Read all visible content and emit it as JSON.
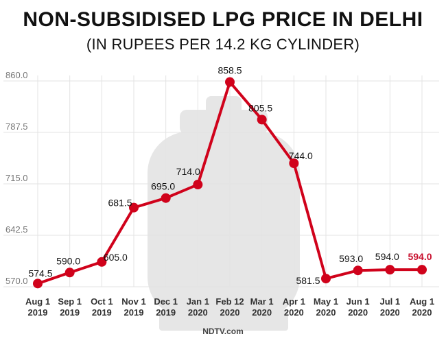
{
  "chart_data": {
    "type": "line",
    "title": "NON-SUBSIDISED LPG PRICE IN DELHI",
    "subtitle": "(IN RUPEES PER 14.2 KG CYLINDER)",
    "categories": [
      [
        "Aug 1",
        "2019"
      ],
      [
        "Sep 1",
        "2019"
      ],
      [
        "Oct 1",
        "2019"
      ],
      [
        "Nov 1",
        "2019"
      ],
      [
        "Dec 1",
        "2019"
      ],
      [
        "Jan 1",
        "2020"
      ],
      [
        "Feb 12",
        "2020"
      ],
      [
        "Mar 1",
        "2020"
      ],
      [
        "Apr 1",
        "2020"
      ],
      [
        "May 1",
        "2020"
      ],
      [
        "Jun 1",
        "2020"
      ],
      [
        "Jul 1",
        "2020"
      ],
      [
        "Aug 1",
        "2020"
      ]
    ],
    "values": [
      574.5,
      590.0,
      605.0,
      681.5,
      695.0,
      714.0,
      858.5,
      805.5,
      744.0,
      581.5,
      593.0,
      594.0,
      594.0
    ],
    "value_labels": [
      "574.5",
      "590.0",
      "605.0",
      "681.5",
      "695.0",
      "714.0",
      "858.5",
      "805.5",
      "744.0",
      "581.5",
      "593.0",
      "594.0",
      "594.0"
    ],
    "yticks": [
      "570.0",
      "642.5",
      "715.0",
      "787.5",
      "860.0"
    ],
    "ylim": [
      570,
      860
    ],
    "grid": true,
    "xlabel": "",
    "ylabel": "",
    "source": "NDTV.com",
    "colors": {
      "line": "#d0021b",
      "highlight_label": "#c8102e",
      "label": "#111111",
      "tick": "#777777",
      "grid": "#e3e3e3",
      "watermark": "#e6e6e6"
    }
  }
}
